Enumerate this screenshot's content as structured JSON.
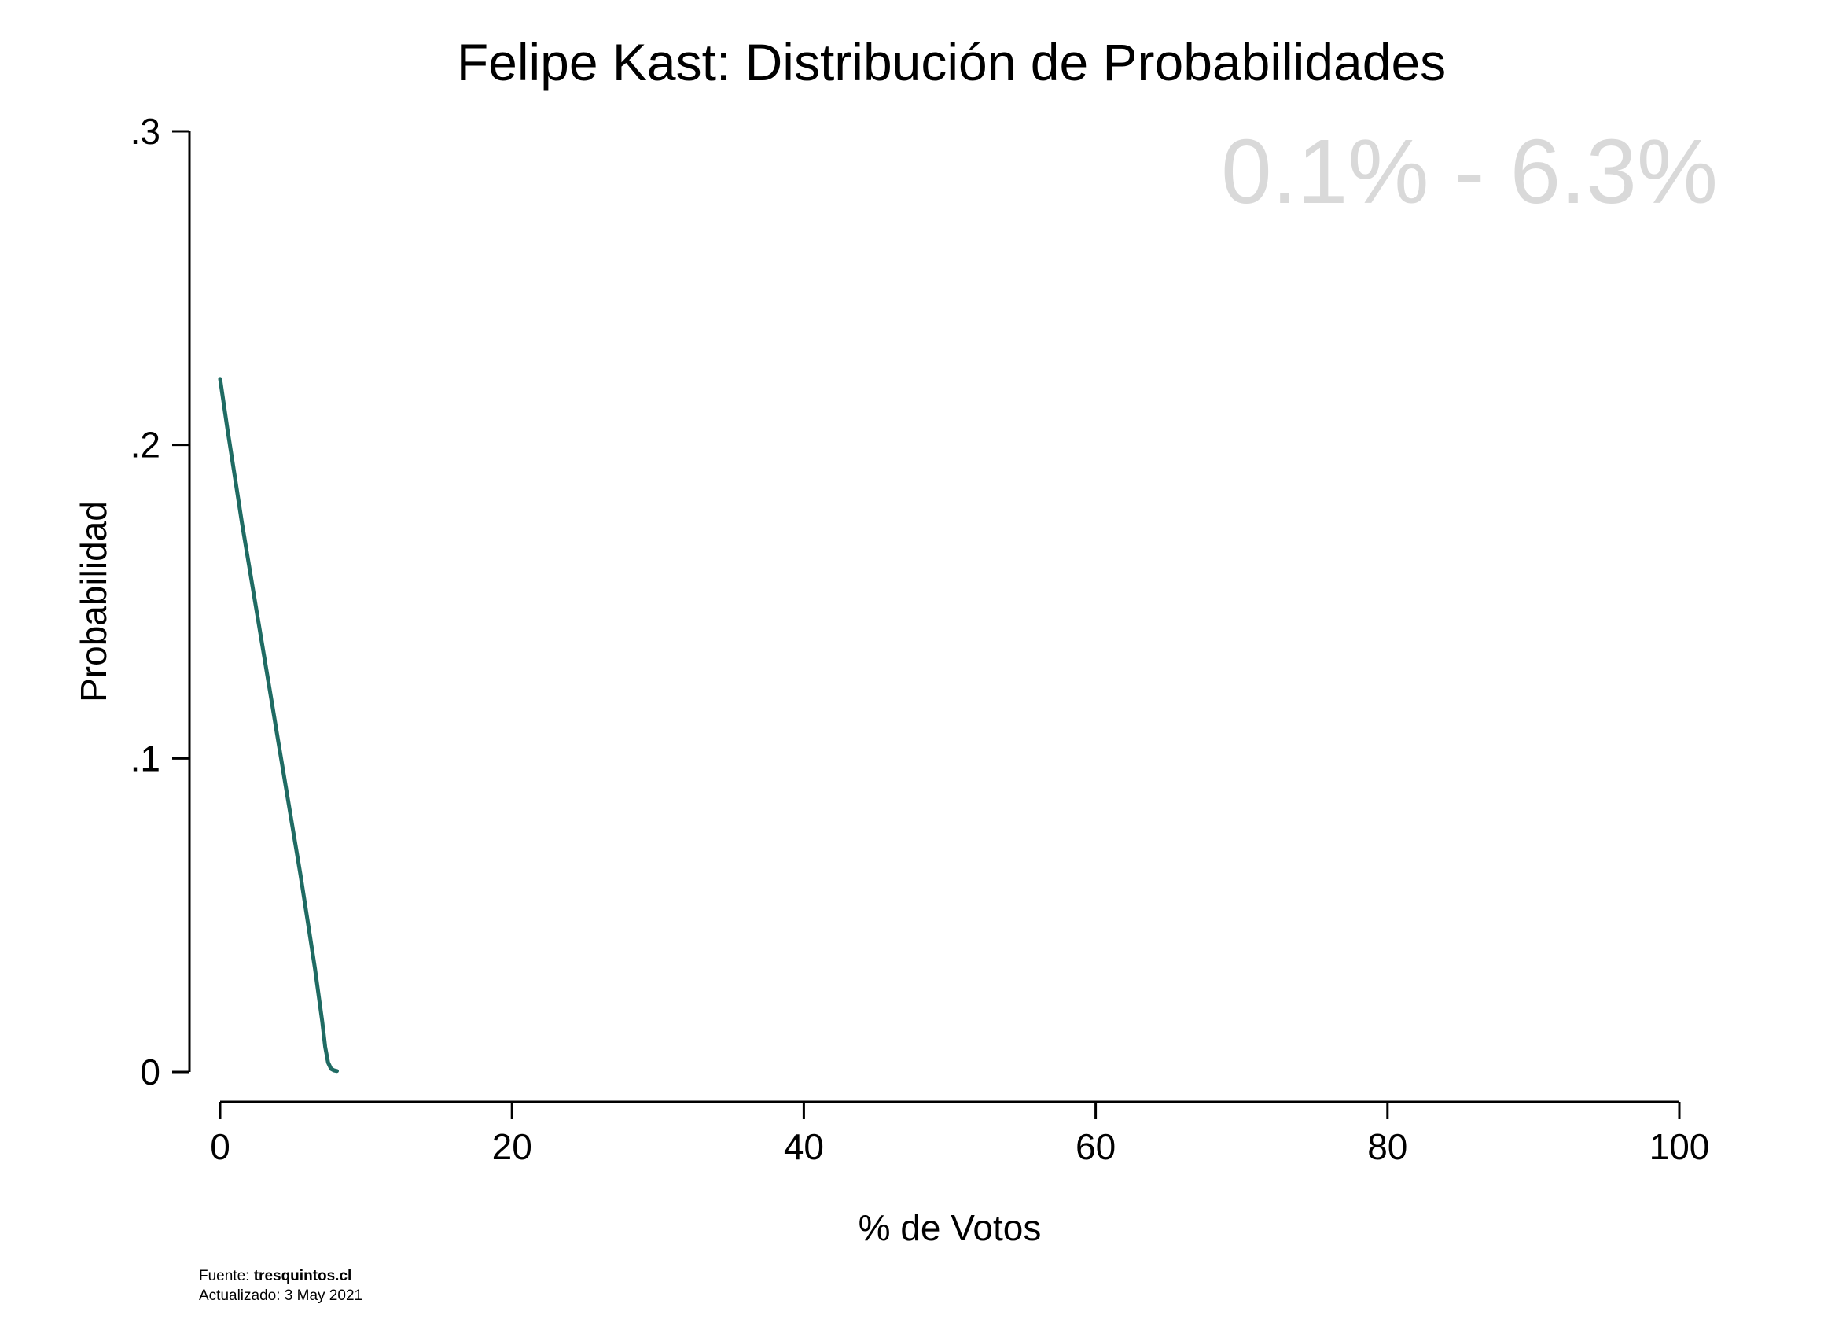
{
  "chart_data": {
    "type": "line",
    "title": "Felipe Kast: Distribución de Probabilidades",
    "xlabel": "% de Votos",
    "ylabel": "Probabilidad",
    "xlim": [
      0,
      100
    ],
    "ylim": [
      0,
      0.3
    ],
    "x_ticks": [
      0,
      20,
      40,
      60,
      80,
      100
    ],
    "x_tick_labels": [
      "0",
      "20",
      "40",
      "60",
      "80",
      "100"
    ],
    "y_ticks": [
      0,
      0.1,
      0.2,
      0.3
    ],
    "y_tick_labels": [
      "0",
      ".1",
      ".2",
      ".3"
    ],
    "grid": false,
    "legend": "none",
    "annotation": "0.1% - 6.3%",
    "line_color": "#1f6b63",
    "annotation_color": "#d9d9d9",
    "series": [
      {
        "x": [
          0,
          0.5,
          1,
          1.5,
          2,
          2.5,
          3,
          3.5,
          4,
          4.5,
          5,
          5.5,
          6,
          6.5,
          7,
          7.2,
          7.4,
          7.6,
          7.8,
          8.0
        ],
        "y": [
          0.221,
          0.205,
          0.19,
          0.175,
          0.161,
          0.147,
          0.133,
          0.119,
          0.105,
          0.091,
          0.077,
          0.063,
          0.048,
          0.033,
          0.016,
          0.008,
          0.003,
          0.001,
          0.0005,
          0.0003
        ]
      }
    ]
  },
  "footer": {
    "source_prefix": "Fuente: ",
    "source_name": "tresquintos.cl",
    "updated": "Actualizado: 3 May 2021"
  }
}
